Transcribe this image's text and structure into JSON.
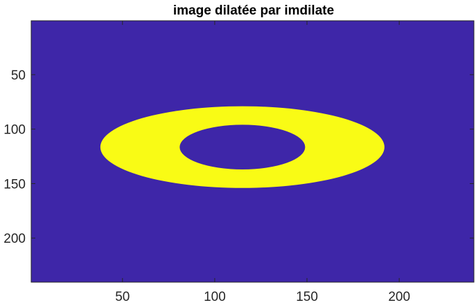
{
  "chart_data": {
    "type": "heatmap",
    "title": "image dilatée par imdilate",
    "xlabel": "",
    "ylabel": "",
    "xlim": [
      0.5,
      240.5
    ],
    "ylim": [
      0.5,
      240.5
    ],
    "y_reversed": true,
    "x_ticks": [
      50,
      100,
      150,
      200
    ],
    "y_ticks": [
      50,
      100,
      150,
      200
    ],
    "x_tick_labels": [
      "50",
      "100",
      "150",
      "200"
    ],
    "y_tick_labels": [
      "50",
      "100",
      "150",
      "200"
    ],
    "colormap": [
      "#3e26a8",
      "#f9fb15"
    ],
    "background_value": 0,
    "foreground_value": 1,
    "shapes": [
      {
        "type": "ring",
        "value": 1,
        "center": [
          115,
          116.5
        ],
        "outer_radii": [
          77,
          37.5
        ],
        "inner_radii": [
          34,
          20.5
        ]
      }
    ]
  }
}
